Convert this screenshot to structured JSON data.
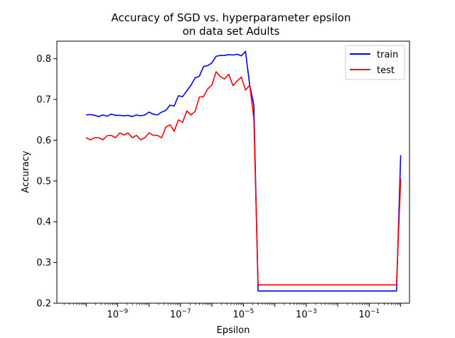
{
  "chart_data": {
    "type": "line",
    "title_line1": "Accuracy of SGD vs. hyperparameter epsilon",
    "title_line2": "on data set Adults",
    "xlabel": "Epsilon",
    "ylabel": "Accuracy",
    "xscale": "log",
    "xlim_log10": [
      -10.93,
      0.28
    ],
    "ylim": [
      0.2,
      0.843
    ],
    "grid": false,
    "legend_placement": "top-right",
    "x_ticks": [
      {
        "exp": -9,
        "base": "10",
        "sup": "−9"
      },
      {
        "exp": -7,
        "base": "10",
        "sup": "−7"
      },
      {
        "exp": -5,
        "base": "10",
        "sup": "−5"
      },
      {
        "exp": -3,
        "base": "10",
        "sup": "−3"
      },
      {
        "exp": -1,
        "base": "10",
        "sup": "−1"
      }
    ],
    "y_ticks": [
      {
        "v": 0.2,
        "label": "0.2"
      },
      {
        "v": 0.3,
        "label": "0.3"
      },
      {
        "v": 0.4,
        "label": "0.4"
      },
      {
        "v": 0.5,
        "label": "0.5"
      },
      {
        "v": 0.6,
        "label": "0.6"
      },
      {
        "v": 0.7,
        "label": "0.7"
      },
      {
        "v": 0.8,
        "label": "0.8"
      }
    ],
    "x_log10": [
      -10.0,
      -9.867,
      -9.733,
      -9.6,
      -9.467,
      -9.333,
      -9.2,
      -9.067,
      -8.933,
      -8.8,
      -8.667,
      -8.533,
      -8.4,
      -8.267,
      -8.133,
      -8.0,
      -7.867,
      -7.733,
      -7.6,
      -7.467,
      -7.333,
      -7.2,
      -7.067,
      -6.933,
      -6.8,
      -6.667,
      -6.533,
      -6.4,
      -6.267,
      -6.133,
      -6.0,
      -5.867,
      -5.733,
      -5.6,
      -5.467,
      -5.333,
      -5.2,
      -5.067,
      -4.933,
      -4.8,
      -4.667,
      -4.533,
      -4.4,
      -4.267,
      -4.133,
      -4.0,
      -0.2,
      -0.133,
      0.0
    ],
    "series": [
      {
        "name": "train",
        "color": "#0000ff",
        "values": [
          0.662,
          0.663,
          0.661,
          0.658,
          0.662,
          0.659,
          0.664,
          0.661,
          0.661,
          0.66,
          0.661,
          0.658,
          0.662,
          0.66,
          0.662,
          0.669,
          0.664,
          0.662,
          0.669,
          0.673,
          0.686,
          0.684,
          0.709,
          0.707,
          0.721,
          0.735,
          0.753,
          0.757,
          0.781,
          0.783,
          0.79,
          0.806,
          0.808,
          0.808,
          0.81,
          0.809,
          0.811,
          0.807,
          0.818,
          0.735,
          0.686,
          0.23,
          0.23,
          0.23,
          0.23,
          0.23,
          0.23,
          0.23,
          0.563
        ]
      },
      {
        "name": "test",
        "color": "#ff0000",
        "values": [
          0.606,
          0.601,
          0.606,
          0.606,
          0.601,
          0.611,
          0.612,
          0.606,
          0.618,
          0.613,
          0.618,
          0.606,
          0.612,
          0.601,
          0.606,
          0.618,
          0.612,
          0.612,
          0.606,
          0.632,
          0.638,
          0.622,
          0.65,
          0.644,
          0.672,
          0.662,
          0.671,
          0.706,
          0.707,
          0.726,
          0.736,
          0.768,
          0.756,
          0.75,
          0.762,
          0.734,
          0.745,
          0.755,
          0.723,
          0.735,
          0.652,
          0.245,
          0.245,
          0.245,
          0.245,
          0.245,
          0.245,
          0.245,
          0.506
        ]
      }
    ]
  }
}
